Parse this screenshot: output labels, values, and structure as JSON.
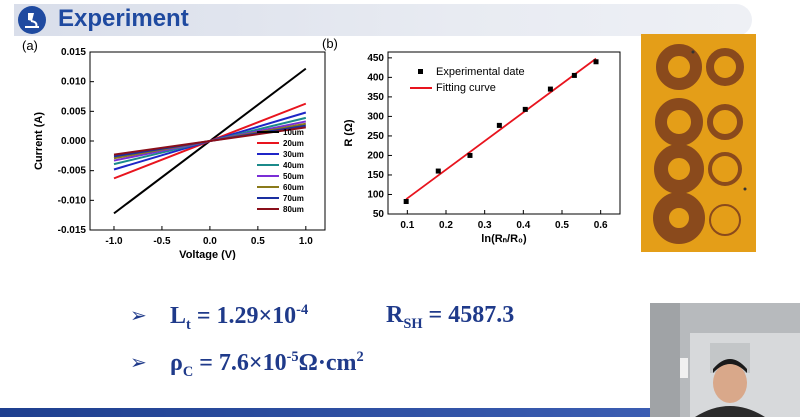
{
  "header": {
    "title": "Experiment"
  },
  "panels": {
    "a_label": "(a)",
    "b_label": "(b)"
  },
  "chart_data": [
    {
      "type": "line",
      "xlabel": "Voltage (V)",
      "ylabel": "Current (A)",
      "xlim": [
        -1.25,
        1.2
      ],
      "ylim": [
        -0.015,
        0.015
      ],
      "xticks": [
        "-1.0",
        "-0.5",
        "0.0",
        "0.5",
        "1.0"
      ],
      "yticks": [
        "-0.015",
        "-0.010",
        "-0.005",
        "0.000",
        "0.005",
        "0.010",
        "0.015"
      ],
      "series": [
        {
          "name": "10um",
          "color": "#000000",
          "x": [
            -1.0,
            1.0
          ],
          "y": [
            -0.0122,
            0.0122
          ]
        },
        {
          "name": "20um",
          "color": "#e8141e",
          "x": [
            -1.0,
            1.0
          ],
          "y": [
            -0.0063,
            0.0063
          ]
        },
        {
          "name": "30um",
          "color": "#1f25c7",
          "x": [
            -1.0,
            1.0
          ],
          "y": [
            -0.0048,
            0.0048
          ]
        },
        {
          "name": "40um",
          "color": "#1b8a8a",
          "x": [
            -1.0,
            1.0
          ],
          "y": [
            -0.0039,
            0.0039
          ]
        },
        {
          "name": "50um",
          "color": "#7a2ed6",
          "x": [
            -1.0,
            1.0
          ],
          "y": [
            -0.0033,
            0.0033
          ]
        },
        {
          "name": "60um",
          "color": "#8a7a1a",
          "x": [
            -1.0,
            1.0
          ],
          "y": [
            -0.0029,
            0.0029
          ]
        },
        {
          "name": "70um",
          "color": "#1a2fa0",
          "x": [
            -1.0,
            1.0
          ],
          "y": [
            -0.0026,
            0.0026
          ]
        },
        {
          "name": "80um",
          "color": "#8a0f1a",
          "x": [
            -1.0,
            1.0
          ],
          "y": [
            -0.0023,
            0.0023
          ]
        }
      ],
      "legend": "right"
    },
    {
      "type": "scatter",
      "xlabel": "ln(Rₙ/R₀)",
      "ylabel": "R (Ω)",
      "xlim": [
        0.05,
        0.65
      ],
      "ylim": [
        50,
        465
      ],
      "xticks": [
        "0.1",
        "0.2",
        "0.3",
        "0.4",
        "0.5",
        "0.6"
      ],
      "yticks": [
        "50",
        "100",
        "150",
        "200",
        "250",
        "300",
        "350",
        "400",
        "450"
      ],
      "series": [
        {
          "name": "Experimental date",
          "x": [
            0.097,
            0.18,
            0.262,
            0.338,
            0.405,
            0.47,
            0.532,
            0.588
          ],
          "y": [
            82,
            160,
            200,
            277,
            318,
            370,
            405,
            440
          ]
        },
        {
          "name": "Fitting curve",
          "x": [
            0.097,
            0.588
          ],
          "y": [
            88,
            448
          ]
        }
      ],
      "legend": "top-left"
    }
  ],
  "formulas": {
    "f1_lt_label": "L",
    "f1_lt_sub": "t",
    "f1_lt_value": "= 1.29×10",
    "f1_lt_exp": "-4",
    "f1_rsh_label": "R",
    "f1_rsh_sub": "SH",
    "f1_rsh_value": "= 4587.3",
    "f2_label": "ρ",
    "f2_sub": "C",
    "f2_value": "= 7.6×10",
    "f2_exp": "-5",
    "f2_unit": "Ω·cm",
    "f2_unit_exp": "2"
  },
  "colors": {
    "accent": "#1f3a8a",
    "fit_line": "#e8141e",
    "photo_bg": "#e9a21a",
    "ring": "#8a4a1c"
  }
}
